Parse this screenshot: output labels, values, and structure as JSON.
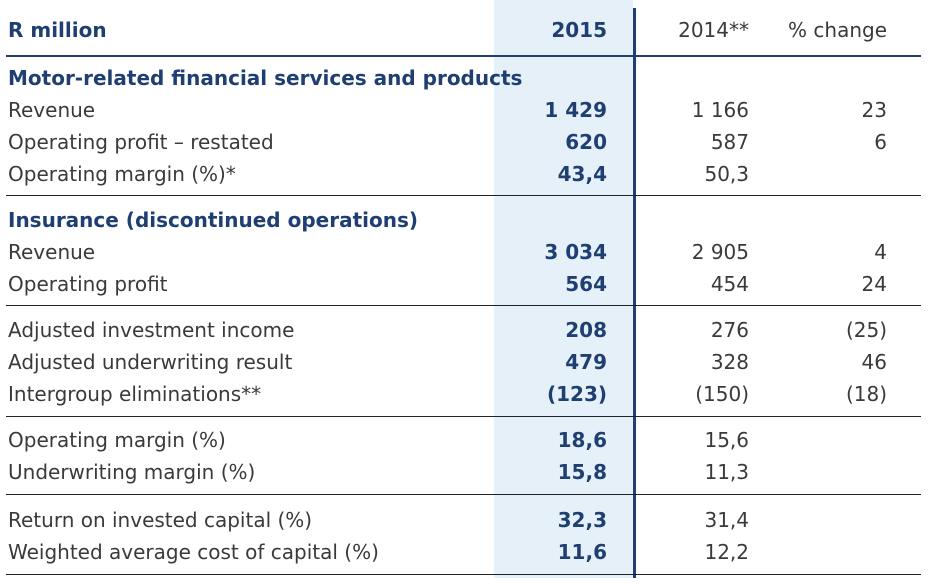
{
  "header": {
    "label": "R million",
    "col_2015": "2015",
    "col_2014": "2014**",
    "col_change": "% change"
  },
  "sections": {
    "motor": "Motor-related financial services and products",
    "insurance": "Insurance (discontinued operations)"
  },
  "rows": {
    "motor_revenue": {
      "label": "Revenue",
      "v2015": "1 429",
      "v2014": "1 166",
      "change": "23"
    },
    "motor_op_profit": {
      "label": "Operating profit – restated",
      "v2015": "620",
      "v2014": "587",
      "change": "6"
    },
    "motor_op_margin": {
      "label": "Operating margin (%)*",
      "v2015": "43,4",
      "v2014": "50,3",
      "change": ""
    },
    "ins_revenue": {
      "label": "Revenue",
      "v2015": "3 034",
      "v2014": "2 905",
      "change": "4"
    },
    "ins_op_profit": {
      "label": "Operating profit",
      "v2015": "564",
      "v2014": "454",
      "change": "24"
    },
    "adj_inv_income": {
      "label": "Adjusted investment income",
      "v2015": "208",
      "v2014": "276",
      "change": "(25)"
    },
    "adj_uw_result": {
      "label": "Adjusted underwriting result",
      "v2015": "479",
      "v2014": "328",
      "change": "46"
    },
    "intergroup": {
      "label": "Intergroup eliminations**",
      "v2015": "(123)",
      "v2014": "(150)",
      "change": "(18)"
    },
    "op_margin": {
      "label": "Operating margin (%)",
      "v2015": "18,6",
      "v2014": "15,6",
      "change": ""
    },
    "uw_margin": {
      "label": "Underwriting margin (%)",
      "v2015": "15,8",
      "v2014": "11,3",
      "change": ""
    },
    "roic": {
      "label": "Return on invested capital (%)",
      "v2015": "32,3",
      "v2014": "31,4",
      "change": ""
    },
    "wacc": {
      "label": "Weighted average cost of capital (%)",
      "v2015": "11,6",
      "v2014": "12,2",
      "change": ""
    }
  }
}
